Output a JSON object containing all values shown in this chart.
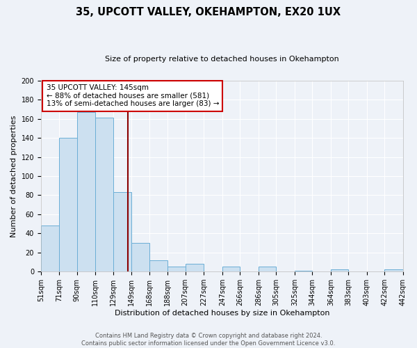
{
  "title": "35, UPCOTT VALLEY, OKEHAMPTON, EX20 1UX",
  "subtitle": "Size of property relative to detached houses in Okehampton",
  "xlabel": "Distribution of detached houses by size in Okehampton",
  "ylabel": "Number of detached properties",
  "bin_labels": [
    "51sqm",
    "71sqm",
    "90sqm",
    "110sqm",
    "129sqm",
    "149sqm",
    "168sqm",
    "188sqm",
    "207sqm",
    "227sqm",
    "247sqm",
    "266sqm",
    "286sqm",
    "305sqm",
    "325sqm",
    "344sqm",
    "364sqm",
    "383sqm",
    "403sqm",
    "422sqm",
    "442sqm"
  ],
  "bar_values": [
    48,
    140,
    167,
    161,
    83,
    30,
    12,
    5,
    8,
    0,
    5,
    0,
    5,
    0,
    1,
    0,
    2,
    0,
    0,
    2
  ],
  "bin_edges": [
    51,
    71,
    90,
    110,
    129,
    149,
    168,
    188,
    207,
    227,
    247,
    266,
    286,
    305,
    325,
    344,
    364,
    383,
    403,
    422,
    442
  ],
  "property_size": 145,
  "bar_color": "#cce0f0",
  "bar_edge_color": "#6baed6",
  "line_color": "#8b0000",
  "annotation_text_line1": "35 UPCOTT VALLEY: 145sqm",
  "annotation_text_line2": "← 88% of detached houses are smaller (581)",
  "annotation_text_line3": "13% of semi-detached houses are larger (83) →",
  "annotation_box_facecolor": "#ffffff",
  "annotation_box_edgecolor": "#cc0000",
  "ylim": [
    0,
    200
  ],
  "yticks": [
    0,
    20,
    40,
    60,
    80,
    100,
    120,
    140,
    160,
    180,
    200
  ],
  "footer_line1": "Contains HM Land Registry data © Crown copyright and database right 2024.",
  "footer_line2": "Contains public sector information licensed under the Open Government Licence v3.0.",
  "background_color": "#eef2f8",
  "grid_color": "#ffffff",
  "title_fontsize": 10.5,
  "subtitle_fontsize": 8,
  "tick_fontsize": 7,
  "label_fontsize": 8,
  "annotation_fontsize": 7.5,
  "footer_fontsize": 6
}
